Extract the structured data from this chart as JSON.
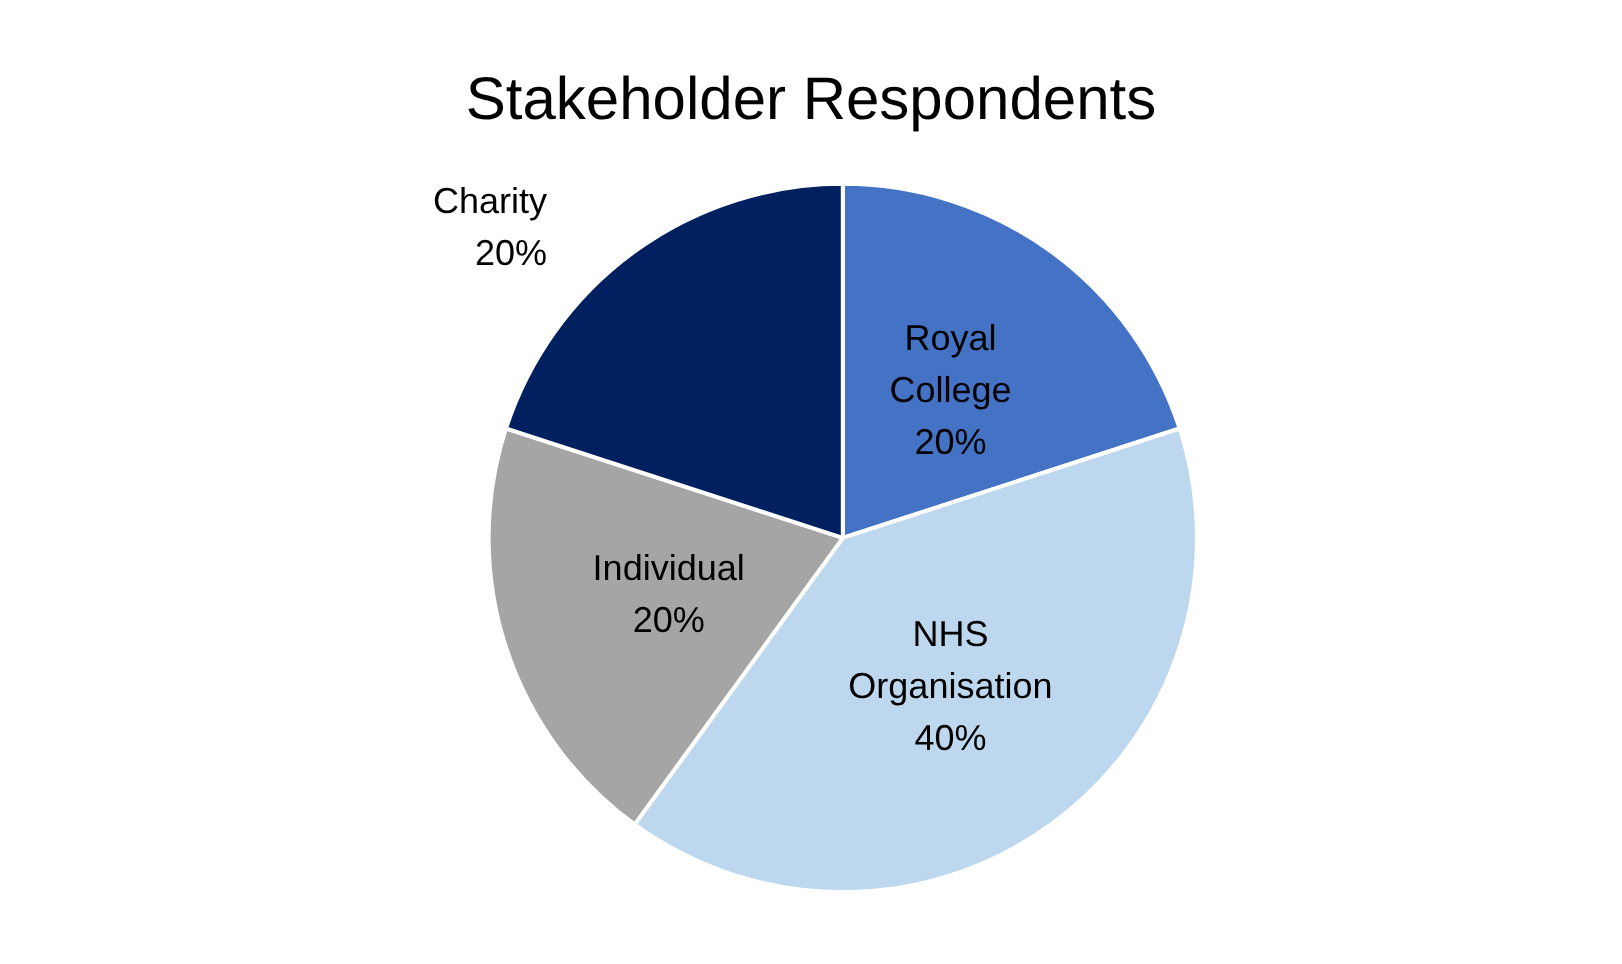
{
  "chart_data": {
    "type": "pie",
    "title": "Stakeholder Respondents",
    "categories": [
      "Royal College",
      "NHS Organisation",
      "Individual",
      "Charity"
    ],
    "values": [
      20,
      40,
      20,
      20
    ],
    "colors": [
      "#4472c4",
      "#bdd7ee",
      "#a5a5a5",
      "#002060"
    ],
    "value_labels": [
      "20%",
      "40%",
      "20%",
      "20%"
    ],
    "legend": false
  }
}
